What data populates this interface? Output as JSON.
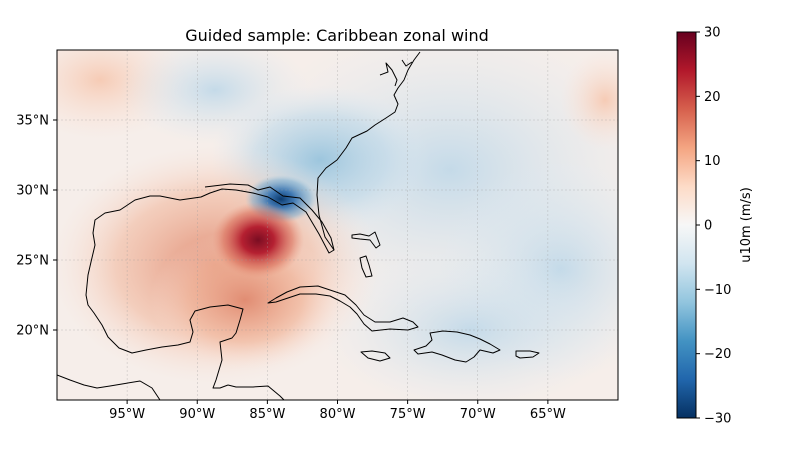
{
  "title": "Guided sample: Caribbean zonal wind",
  "map": {
    "lon_range": [
      -100,
      -60
    ],
    "lat_range": [
      15,
      40
    ],
    "lon_ticks": [
      {
        "value": -95,
        "label": "95°W"
      },
      {
        "value": -90,
        "label": "90°W"
      },
      {
        "value": -85,
        "label": "85°W"
      },
      {
        "value": -80,
        "label": "80°W"
      },
      {
        "value": -75,
        "label": "75°W"
      },
      {
        "value": -70,
        "label": "70°W"
      },
      {
        "value": -65,
        "label": "65°W"
      }
    ],
    "lat_ticks": [
      {
        "value": 20,
        "label": "20°N"
      },
      {
        "value": 25,
        "label": "25°N"
      },
      {
        "value": 30,
        "label": "30°N"
      },
      {
        "value": 35,
        "label": "35°N"
      }
    ],
    "gridlines": "dashed",
    "coastlines": true
  },
  "colorbar": {
    "label": "u10m (m/s)",
    "colormap": "RdBu_r",
    "range": [
      -30,
      30
    ],
    "ticks": [
      {
        "value": 30,
        "label": "30"
      },
      {
        "value": 20,
        "label": "20"
      },
      {
        "value": 10,
        "label": "10"
      },
      {
        "value": 0,
        "label": "0"
      },
      {
        "value": -10,
        "label": "−10"
      },
      {
        "value": -20,
        "label": "−20"
      },
      {
        "value": -30,
        "label": "−30"
      }
    ]
  },
  "field_features": [
    {
      "name": "westerly core",
      "lon": -85.5,
      "lat": 26.2,
      "value": 28
    },
    {
      "name": "easterly core",
      "lon": -84.3,
      "lat": 29.2,
      "value": -24
    }
  ]
}
